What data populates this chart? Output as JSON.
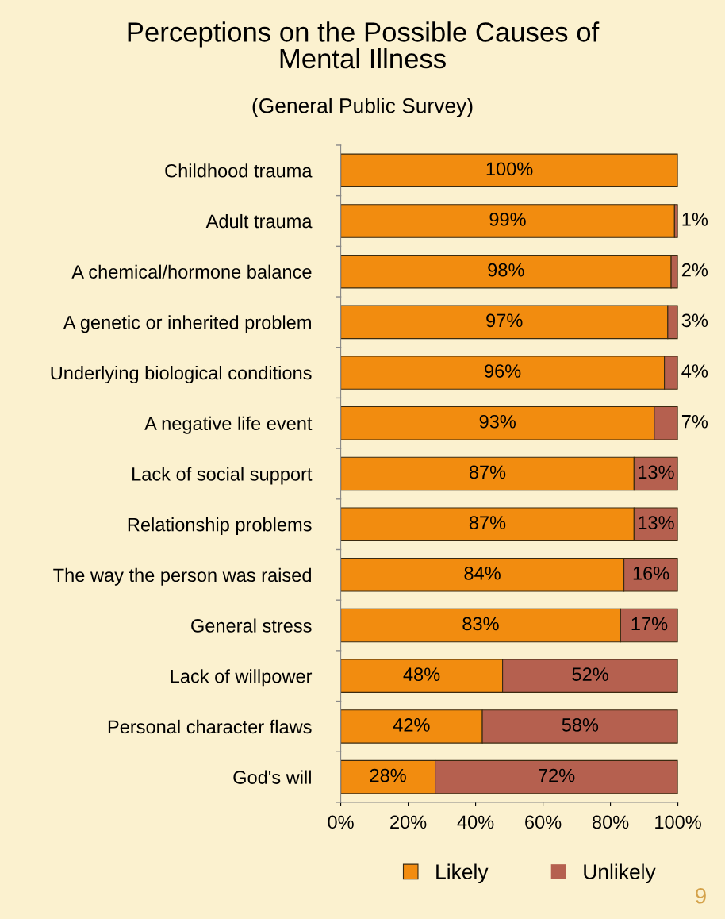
{
  "chart_data": {
    "type": "bar",
    "orientation": "horizontal",
    "stacked": true,
    "title": "Perceptions on the Possible Causes of\nMental Illness",
    "subtitle": "(General Public Survey)",
    "categories": [
      "Childhood trauma",
      "Adult trauma",
      "A chemical/hormone balance",
      "A genetic or inherited problem",
      "Underlying biological conditions",
      "A negative life event",
      "Lack of social support",
      "Relationship problems",
      "The way the person was raised",
      "General stress",
      "Lack of willpower",
      "Personal character flaws",
      "God's will"
    ],
    "series": [
      {
        "name": "Likely",
        "color": "#f28c0f",
        "values": [
          100,
          99,
          98,
          97,
          96,
          93,
          87,
          87,
          84,
          83,
          48,
          42,
          28
        ],
        "value_labels": [
          "100%",
          "99%",
          "98%",
          "97%",
          "96%",
          "93%",
          "87%",
          "87%",
          "84%",
          "83%",
          "48%",
          "42%",
          "28%"
        ]
      },
      {
        "name": "Unlikely",
        "color": "#b5604f",
        "values": [
          0,
          1,
          2,
          3,
          4,
          7,
          13,
          13,
          16,
          17,
          52,
          58,
          72
        ],
        "value_labels": [
          null,
          "1%",
          "2%",
          "3%",
          "4%",
          "7%",
          "13%",
          "13%",
          "16%",
          "17%",
          "52%",
          "58%",
          "72%"
        ]
      }
    ],
    "xlim": [
      0,
      100
    ],
    "xticks": [
      {
        "value": 0,
        "label": "0%"
      },
      {
        "value": 20,
        "label": "20%"
      },
      {
        "value": 40,
        "label": "40%"
      },
      {
        "value": 60,
        "label": "60%"
      },
      {
        "value": 80,
        "label": "80%"
      },
      {
        "value": 100,
        "label": "100%"
      }
    ],
    "legend": "bottom",
    "grid": false,
    "annotations": [
      "9"
    ]
  }
}
